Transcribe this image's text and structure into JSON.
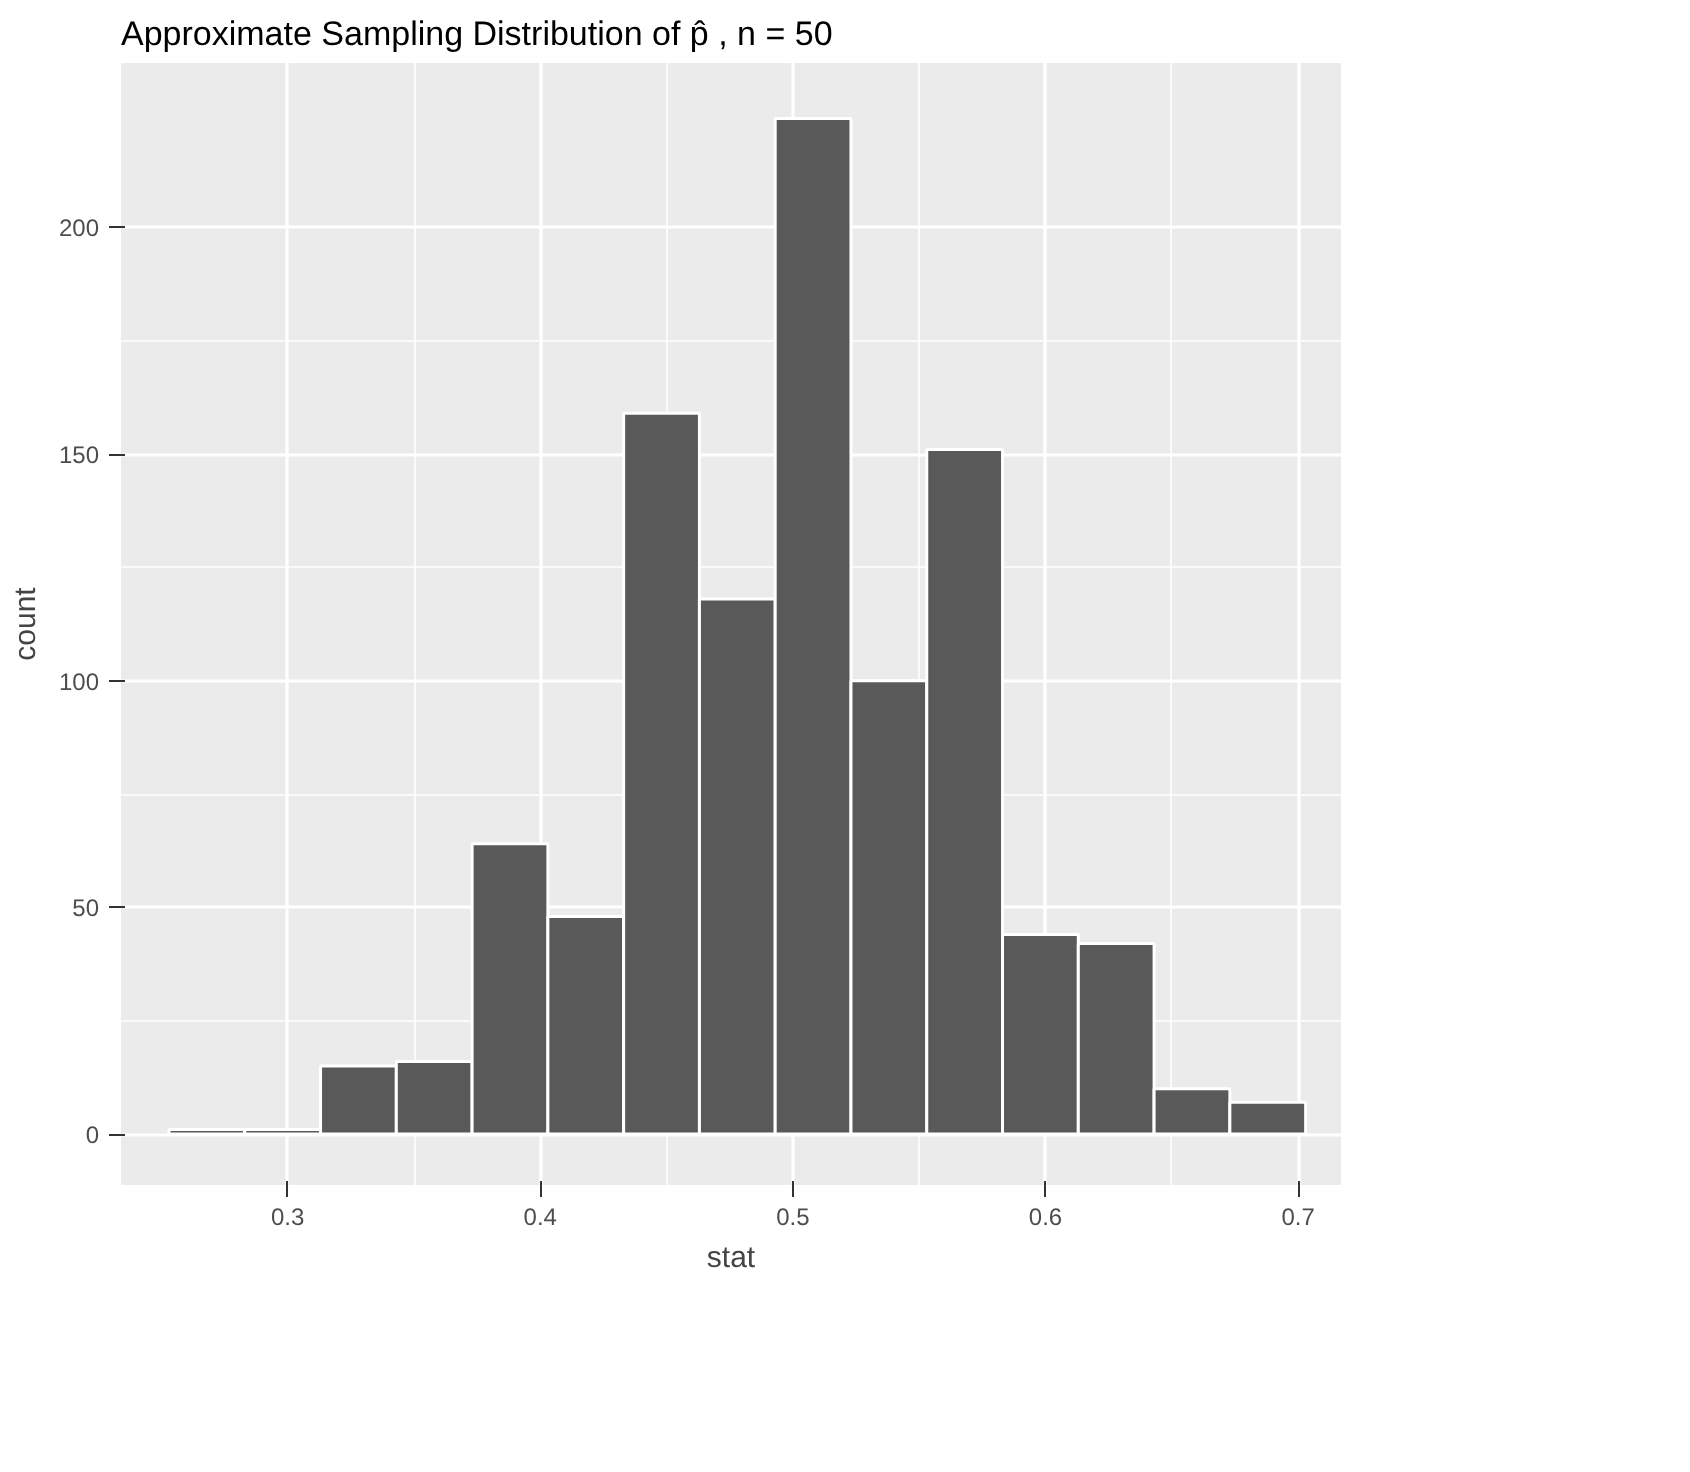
{
  "chart_data": {
    "type": "histogram",
    "title": "Approximate Sampling Distribution of p̂ , n = 50",
    "xlabel": "stat",
    "ylabel": "count",
    "bins": [
      0.253,
      0.283,
      0.313,
      0.343,
      0.373,
      0.403,
      0.433,
      0.463,
      0.493,
      0.523,
      0.553,
      0.583,
      0.613,
      0.643,
      0.673,
      0.703
    ],
    "values": [
      1,
      1,
      15,
      16,
      64,
      48,
      159,
      118,
      224,
      100,
      151,
      44,
      42,
      10,
      7
    ],
    "color": "#595959",
    "xlim": [
      0.234,
      0.717
    ],
    "xticks": [
      {
        "value": 0.3,
        "label": "0.3"
      },
      {
        "value": 0.4,
        "label": "0.4"
      },
      {
        "value": 0.5,
        "label": "0.5"
      },
      {
        "value": 0.6,
        "label": "0.6"
      },
      {
        "value": 0.7,
        "label": "0.7"
      }
    ],
    "ylim": [
      -11.25,
      236.25
    ],
    "yticks": [
      0,
      50,
      100,
      150,
      200
    ],
    "grid": true
  }
}
